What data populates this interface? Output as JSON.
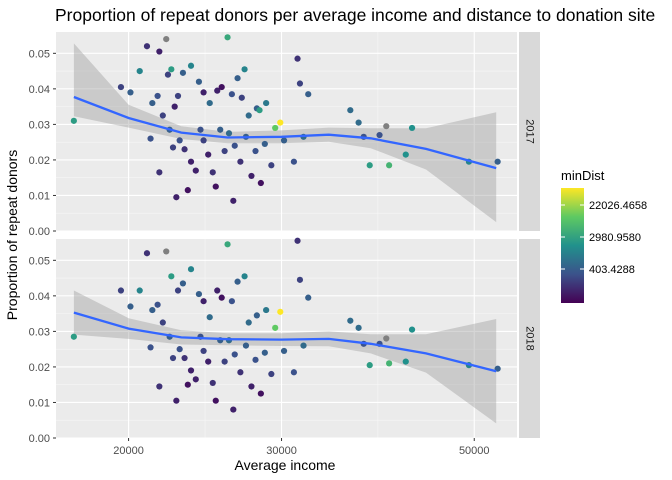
{
  "chart_data": {
    "type": "scatter",
    "title": "Proportion of repeat donors per average income and distance to donation site",
    "xlabel": "Average income",
    "ylabel": "Proportion of repeat donors",
    "x_scale": "log",
    "xlim": [
      16500,
      56000
    ],
    "ylim": [
      0,
      0.056
    ],
    "x_ticks": [
      20000,
      30000,
      50000
    ],
    "x_tick_labels": [
      "20000",
      "30000",
      "50000"
    ],
    "y_ticks": [
      0,
      0.01,
      0.02,
      0.03,
      0.04,
      0.05
    ],
    "y_tick_labels": [
      "0.00",
      "0.01",
      "0.02",
      "0.03",
      "0.04",
      "0.05"
    ],
    "grid": true,
    "legend": {
      "title": "minDist",
      "position": "right",
      "labels": [
        "22026.4658",
        "2980.9580",
        "403.4288"
      ],
      "colors": [
        "#440154",
        "#3b528b",
        "#21918c",
        "#5ec962",
        "#fde725"
      ]
    },
    "smooth_color": "#3366ff",
    "band_color": "#999999",
    "panels": [
      {
        "strip": "2017",
        "smooth": {
          "x": [
            17300,
            20000,
            23000,
            26000,
            30000,
            34000,
            38000,
            44000,
            53000
          ],
          "y": [
            0.0377,
            0.0318,
            0.0277,
            0.0263,
            0.0265,
            0.0271,
            0.0261,
            0.0231,
            0.0177
          ],
          "lower": [
            0.0323,
            0.0291,
            0.0259,
            0.0247,
            0.0247,
            0.0251,
            0.0233,
            0.0173,
            0.0025
          ],
          "upper": [
            0.0528,
            0.0355,
            0.0295,
            0.0279,
            0.0283,
            0.0291,
            0.0289,
            0.0289,
            0.0334
          ]
        },
        "points": [
          {
            "x": 17300,
            "y": 0.031,
            "c": 0.55
          },
          {
            "x": 19600,
            "y": 0.0405,
            "c": 0.2
          },
          {
            "x": 20100,
            "y": 0.039,
            "c": 0.3
          },
          {
            "x": 20600,
            "y": 0.045,
            "c": 0.45
          },
          {
            "x": 21000,
            "y": 0.052,
            "c": 0.15
          },
          {
            "x": 21300,
            "y": 0.036,
            "c": 0.3
          },
          {
            "x": 21600,
            "y": 0.038,
            "c": 0.25
          },
          {
            "x": 21700,
            "y": 0.0505,
            "c": 0.1
          },
          {
            "x": 21900,
            "y": 0.0325,
            "c": 0.2
          },
          {
            "x": 22100,
            "y": 0.054,
            "c": -1
          },
          {
            "x": 22200,
            "y": 0.044,
            "c": 0.2
          },
          {
            "x": 22400,
            "y": 0.0455,
            "c": 0.55
          },
          {
            "x": 22600,
            "y": 0.035,
            "c": 0.1
          },
          {
            "x": 22800,
            "y": 0.038,
            "c": 0.2
          },
          {
            "x": 23100,
            "y": 0.0445,
            "c": 0.3
          },
          {
            "x": 23600,
            "y": 0.0465,
            "c": 0.45
          },
          {
            "x": 24100,
            "y": 0.042,
            "c": 0.3
          },
          {
            "x": 24400,
            "y": 0.039,
            "c": 0.1
          },
          {
            "x": 24800,
            "y": 0.036,
            "c": 0.35
          },
          {
            "x": 25300,
            "y": 0.0395,
            "c": 0.1
          },
          {
            "x": 25600,
            "y": 0.0405,
            "c": 0.05
          },
          {
            "x": 26000,
            "y": 0.0545,
            "c": 0.6
          },
          {
            "x": 26300,
            "y": 0.0385,
            "c": 0.25
          },
          {
            "x": 26700,
            "y": 0.043,
            "c": 0.3
          },
          {
            "x": 27000,
            "y": 0.0375,
            "c": 0.2
          },
          {
            "x": 27200,
            "y": 0.0455,
            "c": 0.45
          },
          {
            "x": 27500,
            "y": 0.0325,
            "c": 0.35
          },
          {
            "x": 28100,
            "y": 0.0345,
            "c": 0.3
          },
          {
            "x": 28300,
            "y": 0.034,
            "c": 0.55
          },
          {
            "x": 28800,
            "y": 0.036,
            "c": 0.4
          },
          {
            "x": 29500,
            "y": 0.029,
            "c": 0.75
          },
          {
            "x": 29900,
            "y": 0.0305,
            "c": 1.0
          },
          {
            "x": 31300,
            "y": 0.0485,
            "c": 0.15
          },
          {
            "x": 31500,
            "y": 0.0415,
            "c": 0.2
          },
          {
            "x": 32200,
            "y": 0.0385,
            "c": 0.3
          },
          {
            "x": 36000,
            "y": 0.034,
            "c": 0.35
          },
          {
            "x": 36800,
            "y": 0.0305,
            "c": 0.35
          },
          {
            "x": 37300,
            "y": 0.0265,
            "c": 0.25
          },
          {
            "x": 37900,
            "y": 0.0185,
            "c": 0.55
          },
          {
            "x": 38900,
            "y": 0.027,
            "c": 0.25
          },
          {
            "x": 39600,
            "y": 0.0295,
            "c": -1
          },
          {
            "x": 39900,
            "y": 0.0185,
            "c": 0.65
          },
          {
            "x": 41700,
            "y": 0.0215,
            "c": 0.5
          },
          {
            "x": 42400,
            "y": 0.029,
            "c": 0.5
          },
          {
            "x": 49300,
            "y": 0.0195,
            "c": 0.45
          },
          {
            "x": 53200,
            "y": 0.0195,
            "c": 0.3
          },
          {
            "x": 21200,
            "y": 0.026,
            "c": 0.25
          },
          {
            "x": 21700,
            "y": 0.0165,
            "c": 0.15
          },
          {
            "x": 22300,
            "y": 0.0285,
            "c": 0.3
          },
          {
            "x": 22500,
            "y": 0.0235,
            "c": 0.2
          },
          {
            "x": 22700,
            "y": 0.0095,
            "c": 0.1
          },
          {
            "x": 22900,
            "y": 0.0255,
            "c": 0.25
          },
          {
            "x": 23200,
            "y": 0.023,
            "c": 0.15
          },
          {
            "x": 23400,
            "y": 0.0115,
            "c": 0.05
          },
          {
            "x": 23600,
            "y": 0.0195,
            "c": 0.1
          },
          {
            "x": 23900,
            "y": 0.017,
            "c": 0.1
          },
          {
            "x": 24200,
            "y": 0.0285,
            "c": 0.25
          },
          {
            "x": 24400,
            "y": 0.0255,
            "c": 0.2
          },
          {
            "x": 24700,
            "y": 0.0215,
            "c": 0.1
          },
          {
            "x": 25000,
            "y": 0.0165,
            "c": 0.15
          },
          {
            "x": 25200,
            "y": 0.0125,
            "c": 0.05
          },
          {
            "x": 25500,
            "y": 0.0285,
            "c": 0.3
          },
          {
            "x": 25800,
            "y": 0.0225,
            "c": 0.2
          },
          {
            "x": 26100,
            "y": 0.0275,
            "c": 0.35
          },
          {
            "x": 26400,
            "y": 0.0085,
            "c": 0.1
          },
          {
            "x": 26500,
            "y": 0.024,
            "c": 0.25
          },
          {
            "x": 26900,
            "y": 0.0195,
            "c": 0.15
          },
          {
            "x": 27300,
            "y": 0.0265,
            "c": 0.3
          },
          {
            "x": 27700,
            "y": 0.0155,
            "c": 0.1
          },
          {
            "x": 28000,
            "y": 0.0225,
            "c": 0.25
          },
          {
            "x": 28400,
            "y": 0.0135,
            "c": 0.05
          },
          {
            "x": 28700,
            "y": 0.0245,
            "c": 0.3
          },
          {
            "x": 29200,
            "y": 0.0185,
            "c": 0.2
          },
          {
            "x": 30200,
            "y": 0.0255,
            "c": 0.3
          },
          {
            "x": 31000,
            "y": 0.0195,
            "c": 0.25
          },
          {
            "x": 31800,
            "y": 0.0265,
            "c": 0.35
          }
        ]
      },
      {
        "strip": "2018",
        "smooth": {
          "x": [
            17300,
            20000,
            23000,
            26000,
            30000,
            34000,
            38000,
            44000,
            53000
          ],
          "y": [
            0.0353,
            0.0308,
            0.0283,
            0.0278,
            0.0277,
            0.0279,
            0.0265,
            0.0238,
            0.0188
          ],
          "lower": [
            0.0291,
            0.0279,
            0.0263,
            0.0261,
            0.0259,
            0.0258,
            0.0238,
            0.0184,
            0.0041
          ],
          "upper": [
            0.0415,
            0.0337,
            0.0303,
            0.0295,
            0.0295,
            0.03,
            0.0292,
            0.0292,
            0.0335
          ]
        },
        "points": [
          {
            "x": 17300,
            "y": 0.0285,
            "c": 0.55
          },
          {
            "x": 19600,
            "y": 0.0415,
            "c": 0.2
          },
          {
            "x": 20100,
            "y": 0.037,
            "c": 0.3
          },
          {
            "x": 20600,
            "y": 0.0415,
            "c": 0.45
          },
          {
            "x": 21000,
            "y": 0.052,
            "c": 0.15
          },
          {
            "x": 21300,
            "y": 0.036,
            "c": 0.3
          },
          {
            "x": 21600,
            "y": 0.0375,
            "c": 0.25
          },
          {
            "x": 21900,
            "y": 0.0325,
            "c": 0.2
          },
          {
            "x": 22100,
            "y": 0.0525,
            "c": -1
          },
          {
            "x": 22400,
            "y": 0.0455,
            "c": 0.55
          },
          {
            "x": 22800,
            "y": 0.0415,
            "c": 0.2
          },
          {
            "x": 23100,
            "y": 0.0435,
            "c": 0.3
          },
          {
            "x": 23600,
            "y": 0.0475,
            "c": 0.45
          },
          {
            "x": 24100,
            "y": 0.0405,
            "c": 0.3
          },
          {
            "x": 24400,
            "y": 0.0385,
            "c": 0.1
          },
          {
            "x": 24800,
            "y": 0.034,
            "c": 0.35
          },
          {
            "x": 25300,
            "y": 0.0415,
            "c": 0.1
          },
          {
            "x": 25600,
            "y": 0.0395,
            "c": 0.05
          },
          {
            "x": 26000,
            "y": 0.0545,
            "c": 0.6
          },
          {
            "x": 26300,
            "y": 0.0385,
            "c": 0.25
          },
          {
            "x": 26700,
            "y": 0.044,
            "c": 0.3
          },
          {
            "x": 27200,
            "y": 0.0455,
            "c": 0.45
          },
          {
            "x": 27500,
            "y": 0.0325,
            "c": 0.35
          },
          {
            "x": 28100,
            "y": 0.0345,
            "c": 0.3
          },
          {
            "x": 28800,
            "y": 0.036,
            "c": 0.4
          },
          {
            "x": 29500,
            "y": 0.031,
            "c": 0.75
          },
          {
            "x": 29900,
            "y": 0.0355,
            "c": 1.0
          },
          {
            "x": 31300,
            "y": 0.0555,
            "c": 0.15
          },
          {
            "x": 31500,
            "y": 0.0445,
            "c": 0.2
          },
          {
            "x": 32200,
            "y": 0.0395,
            "c": 0.3
          },
          {
            "x": 36000,
            "y": 0.033,
            "c": 0.35
          },
          {
            "x": 36800,
            "y": 0.031,
            "c": 0.35
          },
          {
            "x": 37300,
            "y": 0.0265,
            "c": 0.25
          },
          {
            "x": 37900,
            "y": 0.0205,
            "c": 0.55
          },
          {
            "x": 38900,
            "y": 0.0265,
            "c": 0.25
          },
          {
            "x": 39600,
            "y": 0.028,
            "c": -1
          },
          {
            "x": 39900,
            "y": 0.021,
            "c": 0.65
          },
          {
            "x": 41700,
            "y": 0.0215,
            "c": 0.5
          },
          {
            "x": 42400,
            "y": 0.0305,
            "c": 0.5
          },
          {
            "x": 49300,
            "y": 0.0205,
            "c": 0.45
          },
          {
            "x": 53200,
            "y": 0.0195,
            "c": 0.3
          },
          {
            "x": 21200,
            "y": 0.0255,
            "c": 0.25
          },
          {
            "x": 21700,
            "y": 0.0145,
            "c": 0.15
          },
          {
            "x": 22300,
            "y": 0.0285,
            "c": 0.3
          },
          {
            "x": 22500,
            "y": 0.0225,
            "c": 0.2
          },
          {
            "x": 22700,
            "y": 0.0105,
            "c": 0.1
          },
          {
            "x": 22900,
            "y": 0.025,
            "c": 0.25
          },
          {
            "x": 23200,
            "y": 0.0225,
            "c": 0.15
          },
          {
            "x": 23400,
            "y": 0.015,
            "c": 0.05
          },
          {
            "x": 23600,
            "y": 0.019,
            "c": 0.1
          },
          {
            "x": 23900,
            "y": 0.0165,
            "c": 0.1
          },
          {
            "x": 24200,
            "y": 0.0285,
            "c": 0.25
          },
          {
            "x": 24400,
            "y": 0.0245,
            "c": 0.2
          },
          {
            "x": 24700,
            "y": 0.0215,
            "c": 0.1
          },
          {
            "x": 25000,
            "y": 0.0155,
            "c": 0.15
          },
          {
            "x": 25200,
            "y": 0.0105,
            "c": 0.05
          },
          {
            "x": 25500,
            "y": 0.0275,
            "c": 0.3
          },
          {
            "x": 25800,
            "y": 0.0215,
            "c": 0.2
          },
          {
            "x": 26100,
            "y": 0.0275,
            "c": 0.35
          },
          {
            "x": 26400,
            "y": 0.008,
            "c": 0.1
          },
          {
            "x": 26500,
            "y": 0.0235,
            "c": 0.25
          },
          {
            "x": 26900,
            "y": 0.0185,
            "c": 0.15
          },
          {
            "x": 27300,
            "y": 0.026,
            "c": 0.3
          },
          {
            "x": 27700,
            "y": 0.0145,
            "c": 0.1
          },
          {
            "x": 28000,
            "y": 0.022,
            "c": 0.25
          },
          {
            "x": 28400,
            "y": 0.0125,
            "c": 0.05
          },
          {
            "x": 28700,
            "y": 0.024,
            "c": 0.3
          },
          {
            "x": 29200,
            "y": 0.018,
            "c": 0.2
          },
          {
            "x": 30200,
            "y": 0.0245,
            "c": 0.3
          },
          {
            "x": 31000,
            "y": 0.0185,
            "c": 0.25
          },
          {
            "x": 31800,
            "y": 0.026,
            "c": 0.35
          }
        ]
      }
    ]
  }
}
